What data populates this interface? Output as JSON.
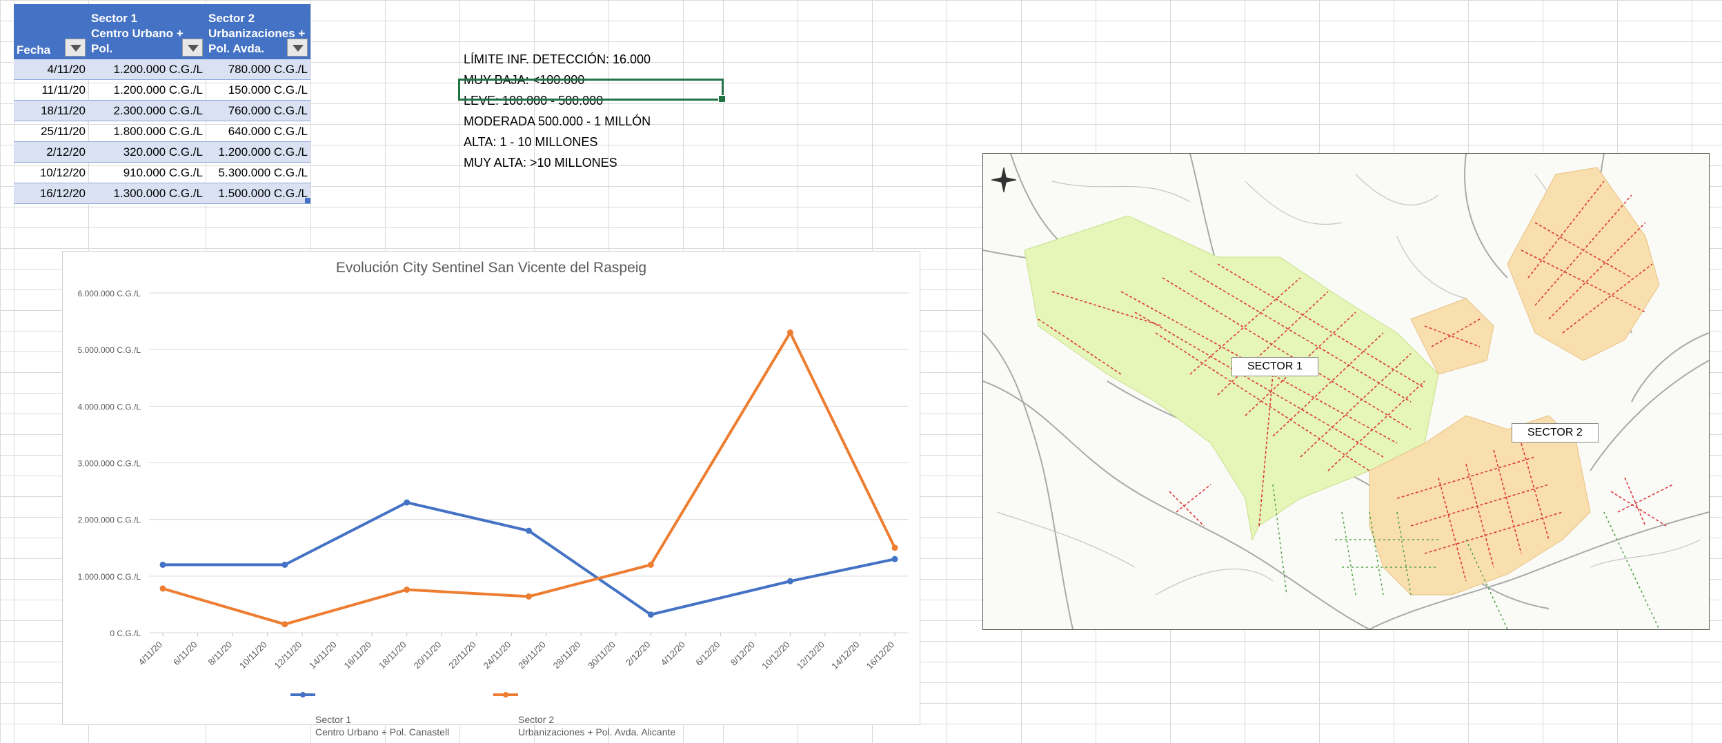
{
  "table": {
    "headers": [
      {
        "label": "Fecha"
      },
      {
        "label": "Sector 1\nCentro Urbano + Pol.\nCanastell"
      },
      {
        "label": "Sector 2\nUrbanizaciones +\nPol. Avda. Alicante"
      }
    ],
    "rows": [
      {
        "fecha": "4/11/20",
        "s1": "1.200.000 C.G./L",
        "s2": "780.000 C.G./L"
      },
      {
        "fecha": "11/11/20",
        "s1": "1.200.000 C.G./L",
        "s2": "150.000 C.G./L"
      },
      {
        "fecha": "18/11/20",
        "s1": "2.300.000 C.G./L",
        "s2": "760.000 C.G./L"
      },
      {
        "fecha": "25/11/20",
        "s1": "1.800.000 C.G./L",
        "s2": "640.000 C.G./L"
      },
      {
        "fecha": "2/12/20",
        "s1": "320.000 C.G./L",
        "s2": "1.200.000 C.G./L"
      },
      {
        "fecha": "10/12/20",
        "s1": "910.000 C.G./L",
        "s2": "5.300.000 C.G./L"
      },
      {
        "fecha": "16/12/20",
        "s1": "1.300.000 C.G./L",
        "s2": "1.500.000 C.G./L"
      }
    ]
  },
  "levels": [
    "LÍMITE INF. DETECCIÓN: 16.000",
    "MUY BAJA: <100.000",
    "LEVE: 100.000 - 500.000",
    "MODERADA 500.000 - 1 MILLÓN",
    "ALTA: 1 - 10 MILLONES",
    "MUY ALTA: >10 MILLONES"
  ],
  "chart_data": {
    "type": "line",
    "title": "Evolución City Sentinel San Vicente del Raspeig",
    "ylim": [
      0,
      6000000
    ],
    "yticks": [
      "0 C.G./L",
      "1.000.000 C.G./L",
      "2.000.000 C.G./L",
      "3.000.000 C.G./L",
      "4.000.000 C.G./L",
      "5.000.000 C.G./L",
      "6.000.000 C.G./L"
    ],
    "xticks": [
      "4/11/20",
      "6/11/20",
      "8/11/20",
      "10/11/20",
      "12/11/20",
      "14/11/20",
      "16/11/20",
      "18/11/20",
      "20/11/20",
      "22/11/20",
      "24/11/20",
      "26/11/20",
      "28/11/20",
      "30/11/20",
      "2/12/20",
      "4/12/20",
      "6/12/20",
      "8/12/20",
      "10/12/20",
      "12/12/20",
      "14/12/20",
      "16/12/20"
    ],
    "x_days": [
      0,
      7,
      14,
      21,
      28,
      36,
      42
    ],
    "x_dates": [
      "4/11/20",
      "11/11/20",
      "18/11/20",
      "25/11/20",
      "2/12/20",
      "10/12/20",
      "16/12/20"
    ],
    "series": [
      {
        "name": "Sector 1\nCentro Urbano + Pol. Canastell",
        "color": "#4472c4",
        "values": [
          1200000,
          1200000,
          2300000,
          1800000,
          320000,
          910000,
          1300000
        ]
      },
      {
        "name": "Sector 2\nUrbanizaciones + Pol. Avda. Alicante",
        "color": "#ed7d31",
        "values": [
          780000,
          150000,
          760000,
          640000,
          1200000,
          5300000,
          1500000
        ]
      }
    ],
    "grid": true,
    "legend": "bottom"
  },
  "map": {
    "sector1": "SECTOR 1",
    "sector2": "SECTOR 2",
    "colors": {
      "sector1": "#e6f5b8",
      "sector2": "#f9dfae",
      "network": "#d9383a"
    }
  }
}
